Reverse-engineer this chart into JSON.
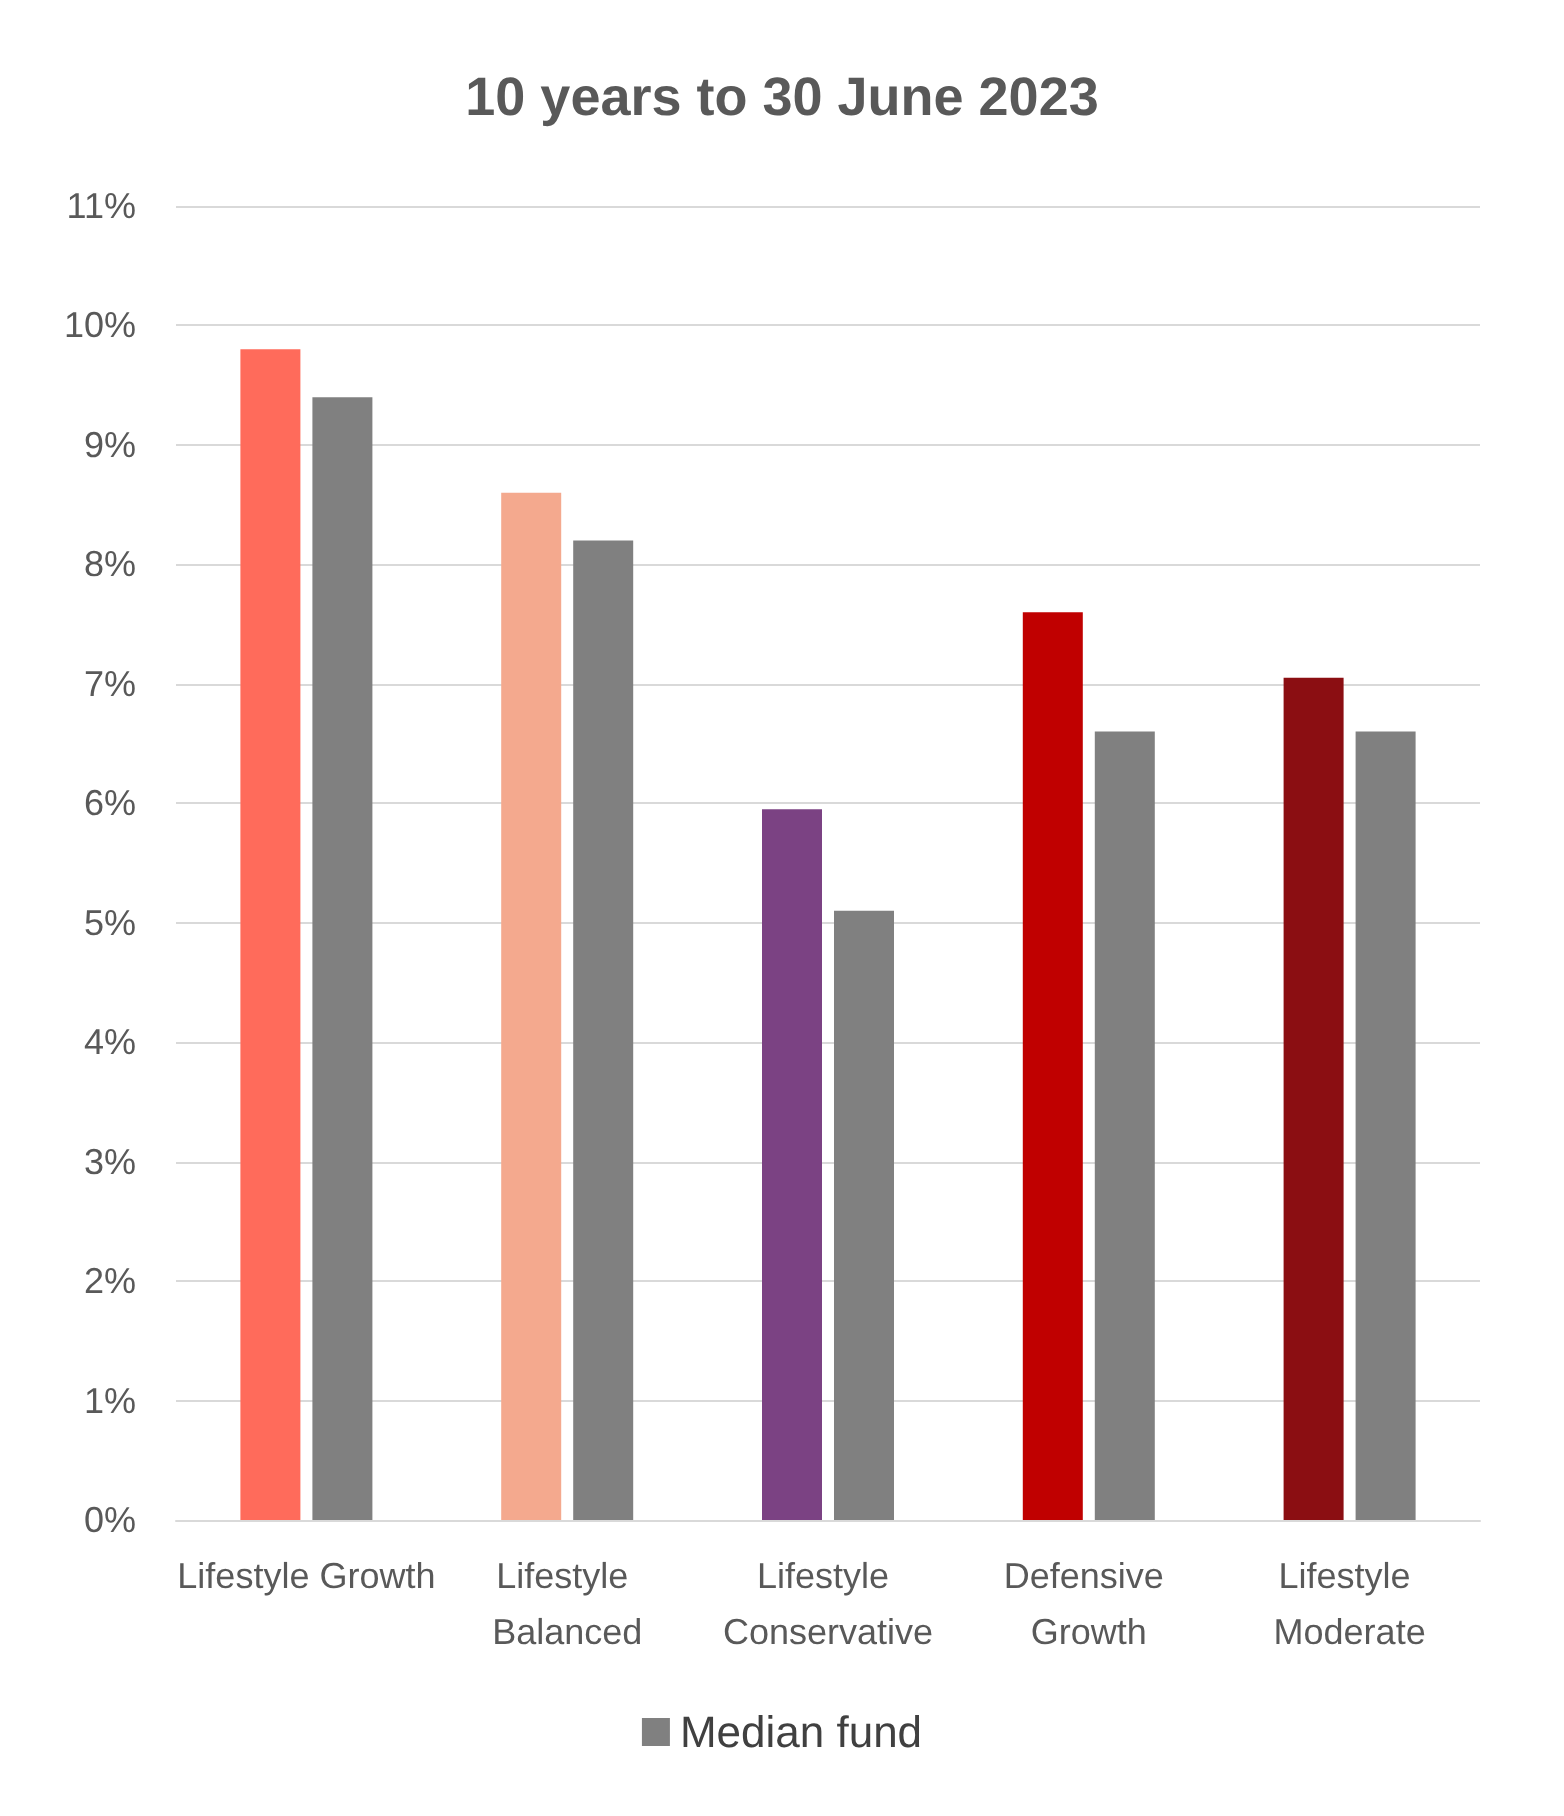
{
  "chart_data": {
    "type": "bar",
    "title": "10 years to 30 June 2023",
    "categories": [
      "Lifestyle Growth",
      "Lifestyle Balanced",
      "Lifestyle Conservative",
      "Defensive Growth",
      "Lifestyle Moderate"
    ],
    "series": [
      {
        "colors": [
          "#ff6b5b",
          "#f4a98e",
          "#7b4283",
          "#c00000",
          "#8b0e12"
        ],
        "color": "#c00000",
        "values": [
          9.8,
          8.6,
          5.95,
          7.6,
          7.05
        ]
      },
      {
        "name": "Median fund",
        "color": "#808080",
        "values": [
          9.4,
          8.2,
          5.1,
          6.6,
          6.6
        ]
      }
    ],
    "ylim": [
      0,
      11
    ],
    "yticks": [
      {
        "value": 0,
        "label": "0%"
      },
      {
        "value": 1,
        "label": "1%"
      },
      {
        "value": 2,
        "label": "2%"
      },
      {
        "value": 3,
        "label": "3%"
      },
      {
        "value": 4,
        "label": "4%"
      },
      {
        "value": 5,
        "label": "5%"
      },
      {
        "value": 6,
        "label": "6%"
      },
      {
        "value": 7,
        "label": "7%"
      },
      {
        "value": 8,
        "label": "8%"
      },
      {
        "value": 9,
        "label": "9%"
      },
      {
        "value": 10,
        "label": "10%"
      },
      {
        "value": 11,
        "label": "11%"
      }
    ],
    "grid": "y",
    "legend": "bottom"
  }
}
